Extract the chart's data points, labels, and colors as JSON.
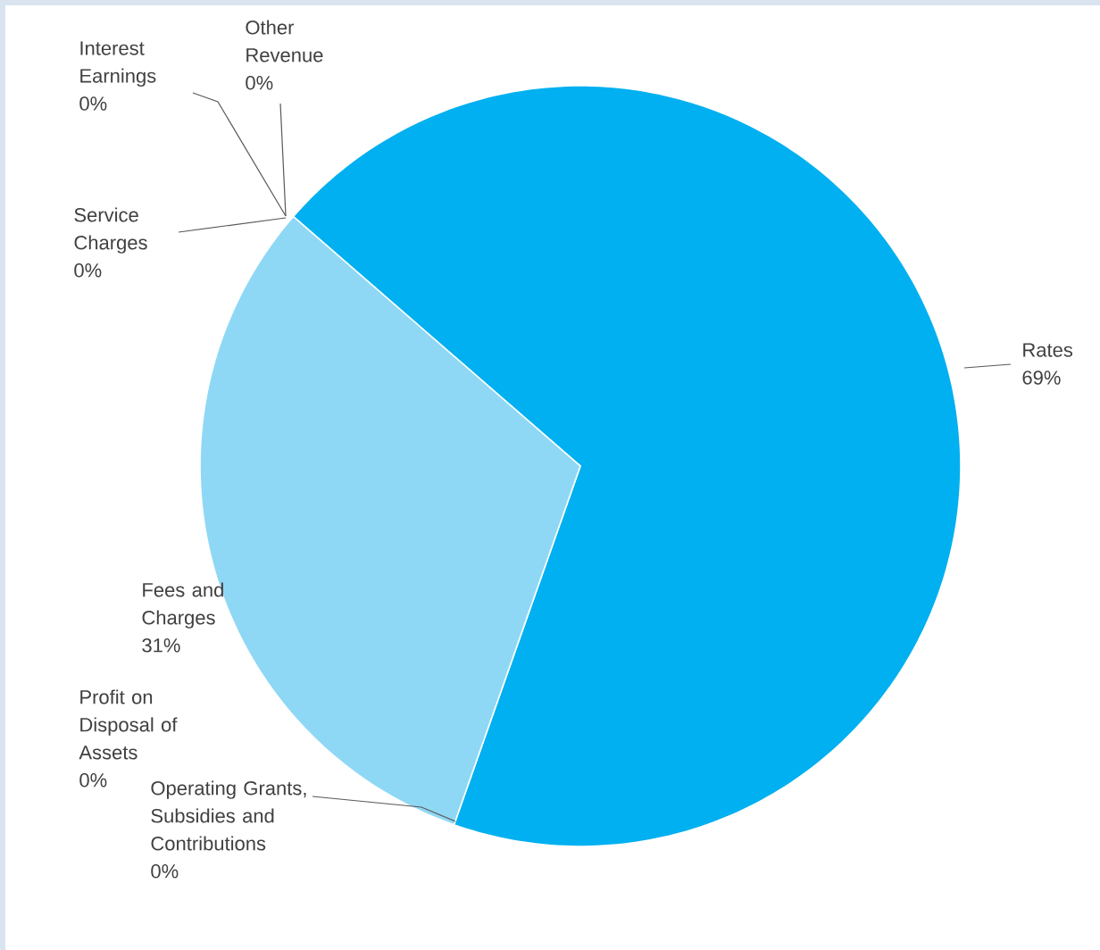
{
  "chart_data": {
    "type": "pie",
    "categories": [
      "Rates",
      "Operating Grants, Subsidies and Contributions",
      "Profit on Disposal of Assets",
      "Fees and Charges",
      "Service Charges",
      "Interest Earnings",
      "Other Revenue"
    ],
    "values": [
      69,
      0,
      0,
      31,
      0,
      0,
      0
    ],
    "value_labels": [
      "69%",
      "0%",
      "0%",
      "31%",
      "0%",
      "0%",
      "0%"
    ],
    "colors": [
      "#00b0f0",
      "#00b0f0",
      "#00b0f0",
      "#8fd8f5",
      "#00b0f0",
      "#00b0f0",
      "#00b0f0"
    ]
  }
}
